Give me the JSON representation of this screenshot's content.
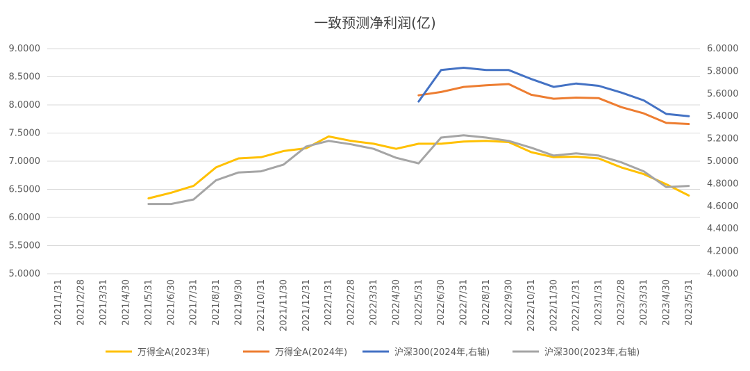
{
  "chart_data": {
    "type": "line",
    "title": "一致预测净利润(亿)",
    "categories": [
      "2021/1/31",
      "2021/2/28",
      "2021/3/31",
      "2021/4/30",
      "2021/5/31",
      "2021/6/30",
      "2021/7/31",
      "2021/8/31",
      "2021/9/30",
      "2021/10/31",
      "2021/11/30",
      "2021/12/31",
      "2022/1/31",
      "2022/2/28",
      "2022/3/31",
      "2022/4/30",
      "2022/5/31",
      "2022/6/30",
      "2022/7/31",
      "2022/8/31",
      "2022/9/30",
      "2022/10/31",
      "2022/11/30",
      "2022/12/31",
      "2023/1/31",
      "2023/2/28",
      "2023/3/31",
      "2023/4/30",
      "2023/5/31"
    ],
    "y_left": {
      "ylim": [
        5.0,
        9.0
      ],
      "ticks": [
        "5.0000",
        "5.5000",
        "6.0000",
        "6.5000",
        "7.0000",
        "7.5000",
        "8.0000",
        "8.5000",
        "9.0000"
      ]
    },
    "y_right": {
      "ylim": [
        4.0,
        6.0
      ],
      "ticks": [
        "4.0000",
        "4.2000",
        "4.4000",
        "4.6000",
        "4.8000",
        "5.0000",
        "5.2000",
        "5.4000",
        "5.6000",
        "5.8000",
        "6.0000"
      ]
    },
    "grid": true,
    "legend_position": "bottom",
    "series": [
      {
        "name": "万得全A(2023年)",
        "axis": "left",
        "color": "#FFC000",
        "values": [
          null,
          null,
          null,
          null,
          6.34,
          6.44,
          6.56,
          6.89,
          7.05,
          7.07,
          7.18,
          7.23,
          7.44,
          7.36,
          7.31,
          7.22,
          7.31,
          7.31,
          7.35,
          7.36,
          7.34,
          7.16,
          7.07,
          7.08,
          7.05,
          6.89,
          6.77,
          6.59,
          6.39
        ]
      },
      {
        "name": "万得全A(2024年)",
        "axis": "left",
        "color": "#ED7D31",
        "values": [
          null,
          null,
          null,
          null,
          null,
          null,
          null,
          null,
          null,
          null,
          null,
          null,
          null,
          null,
          null,
          null,
          8.17,
          8.23,
          8.32,
          8.35,
          8.37,
          8.18,
          8.11,
          8.13,
          8.12,
          7.96,
          7.85,
          7.68,
          7.66
        ]
      },
      {
        "name": "沪深300(2024年,右轴)",
        "axis": "right",
        "color": "#4472C4",
        "values": [
          null,
          null,
          null,
          null,
          null,
          null,
          null,
          null,
          null,
          null,
          null,
          null,
          null,
          null,
          null,
          null,
          5.53,
          5.81,
          5.83,
          5.81,
          5.81,
          5.73,
          5.66,
          5.69,
          5.67,
          5.61,
          5.54,
          5.42,
          5.4
        ]
      },
      {
        "name": "沪深300(2023年,右轴)",
        "axis": "right",
        "color": "#A5A5A5",
        "values": [
          null,
          null,
          null,
          null,
          4.62,
          4.62,
          4.66,
          4.83,
          4.9,
          4.91,
          4.97,
          5.13,
          5.18,
          5.15,
          5.11,
          5.03,
          4.98,
          5.21,
          5.23,
          5.21,
          5.18,
          5.12,
          5.05,
          5.07,
          5.05,
          4.99,
          4.91,
          4.77,
          4.78
        ]
      }
    ]
  }
}
